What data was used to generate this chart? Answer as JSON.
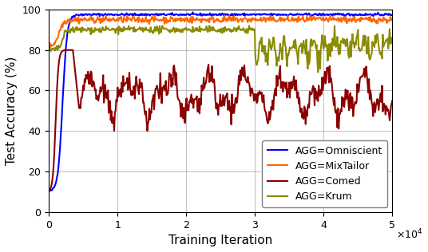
{
  "title": "",
  "xlabel": "Training Iteration",
  "ylabel": "Test Accuracy (%)",
  "xlim": [
    0,
    50000
  ],
  "ylim": [
    0,
    100
  ],
  "xticks": [
    0,
    10000,
    20000,
    30000,
    40000,
    50000
  ],
  "yticks": [
    0,
    20,
    40,
    60,
    80,
    100
  ],
  "colors": {
    "Omniscient": "#0000FF",
    "MixTailor": "#FF6600",
    "Comed": "#8B0000",
    "Krum": "#8B8B00"
  },
  "legend_labels": [
    "AGG=Omniscient",
    "AGG=MixTailor",
    "AGG=Comed",
    "AGG=Krum"
  ],
  "legend_loc": "lower right",
  "grid": true,
  "seed": 42,
  "n_points": 500
}
